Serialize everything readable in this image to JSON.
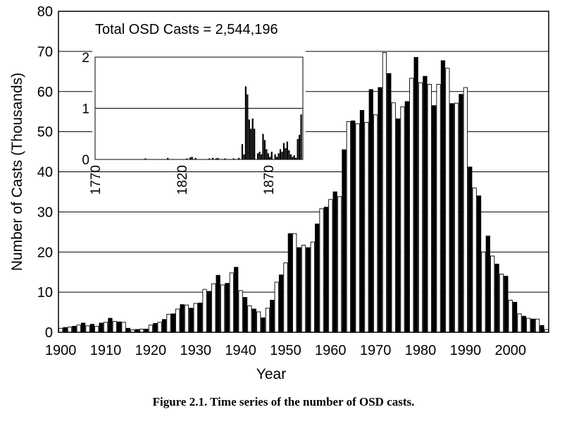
{
  "figure_caption": "Figure 2.1. Time series of the number of OSD casts.",
  "chart_data": [
    {
      "id": "main",
      "type": "bar",
      "xlabel": "Year",
      "ylabel": "Number of Casts (Thousands)",
      "ylim": [
        0,
        80
      ],
      "yticks": [
        "0",
        "10",
        "20",
        "30",
        "40",
        "50",
        "60",
        "70",
        "80"
      ],
      "xlim": [
        1899.5,
        2008.5
      ],
      "xticks": [
        "1900",
        "1910",
        "1920",
        "1930",
        "1940",
        "1950",
        "1960",
        "1970",
        "1980",
        "1990",
        "2000"
      ],
      "grid": "horizontal",
      "annotation": "Total OSD Casts =  2,544,196",
      "x": [
        1900,
        1901,
        1902,
        1903,
        1904,
        1905,
        1906,
        1907,
        1908,
        1909,
        1910,
        1911,
        1912,
        1913,
        1914,
        1915,
        1916,
        1917,
        1918,
        1919,
        1920,
        1921,
        1922,
        1923,
        1924,
        1925,
        1926,
        1927,
        1928,
        1929,
        1930,
        1931,
        1932,
        1933,
        1934,
        1935,
        1936,
        1937,
        1938,
        1939,
        1940,
        1941,
        1942,
        1943,
        1944,
        1945,
        1946,
        1947,
        1948,
        1949,
        1950,
        1951,
        1952,
        1953,
        1954,
        1955,
        1956,
        1957,
        1958,
        1959,
        1960,
        1961,
        1962,
        1963,
        1964,
        1965,
        1966,
        1967,
        1968,
        1969,
        1970,
        1971,
        1972,
        1973,
        1974,
        1975,
        1976,
        1977,
        1978,
        1979,
        1980,
        1981,
        1982,
        1983,
        1984,
        1985,
        1986,
        1987,
        1988,
        1989,
        1990,
        1991,
        1992,
        1993,
        1994,
        1995,
        1996,
        1997,
        1998,
        1999,
        2000,
        2001,
        2002,
        2003,
        2004,
        2005,
        2006,
        2007,
        2008
      ],
      "values": [
        1.0,
        1.2,
        1.3,
        1.5,
        1.8,
        2.3,
        1.6,
        2.0,
        1.5,
        2.3,
        2.5,
        3.5,
        2.7,
        2.6,
        2.5,
        1.0,
        0.6,
        0.7,
        0.8,
        0.8,
        1.8,
        2.2,
        2.5,
        3.2,
        4.5,
        4.6,
        5.8,
        6.9,
        6.8,
        6.0,
        7.2,
        7.3,
        10.7,
        10.2,
        12.1,
        14.2,
        11.8,
        12.2,
        14.8,
        16.2,
        10.4,
        8.7,
        6.6,
        5.8,
        5.1,
        3.6,
        6.0,
        8.0,
        12.5,
        14.3,
        17.3,
        24.6,
        24.6,
        21.1,
        21.7,
        21.1,
        22.5,
        27.0,
        30.8,
        31.2,
        33.1,
        35.0,
        33.8,
        45.5,
        52.5,
        52.7,
        52.0,
        55.3,
        52.3,
        60.5,
        54.2,
        61.0,
        69.7,
        64.5,
        57.2,
        53.2,
        56.2,
        57.5,
        63.3,
        68.5,
        62.2,
        63.8,
        61.8,
        56.5,
        61.8,
        67.7,
        65.8,
        57.0,
        57.1,
        59.3,
        61.0,
        41.2,
        36.0,
        34.0,
        20.0,
        24.0,
        19.0,
        17.0,
        14.5,
        14.0,
        8.0,
        7.5,
        4.6,
        4.0,
        3.5,
        3.3,
        3.3,
        1.7,
        0.7
      ]
    },
    {
      "id": "inset",
      "type": "bar",
      "xlabel": "",
      "ylabel": "",
      "ylim": [
        0,
        2
      ],
      "yticks": [
        "0",
        "1",
        "2"
      ],
      "xlim": [
        1770,
        1890
      ],
      "xticks": [
        "1770",
        "1820",
        "1870"
      ],
      "grid": "horizontal",
      "x": [
        1799,
        1812,
        1823,
        1825,
        1826,
        1828,
        1836,
        1838,
        1840,
        1841,
        1845,
        1850,
        1853,
        1855,
        1856,
        1857,
        1858,
        1859,
        1860,
        1861,
        1862,
        1864,
        1865,
        1866,
        1867,
        1868,
        1869,
        1870,
        1871,
        1872,
        1874,
        1875,
        1876,
        1877,
        1878,
        1879,
        1880,
        1881,
        1882,
        1883,
        1884,
        1885,
        1886,
        1887,
        1888,
        1889
      ],
      "values": [
        0.02,
        0.03,
        0.02,
        0.04,
        0.05,
        0.03,
        0.02,
        0.03,
        0.02,
        0.03,
        0.02,
        0.02,
        0.03,
        0.3,
        0.1,
        1.43,
        1.27,
        0.78,
        0.6,
        0.8,
        0.6,
        0.12,
        0.15,
        0.1,
        0.5,
        0.38,
        0.2,
        0.12,
        0.05,
        0.15,
        0.1,
        0.05,
        0.12,
        0.2,
        0.15,
        0.32,
        0.22,
        0.35,
        0.18,
        0.1,
        0.05,
        0.08,
        0.03,
        0.4,
        0.48,
        0.88
      ]
    }
  ]
}
